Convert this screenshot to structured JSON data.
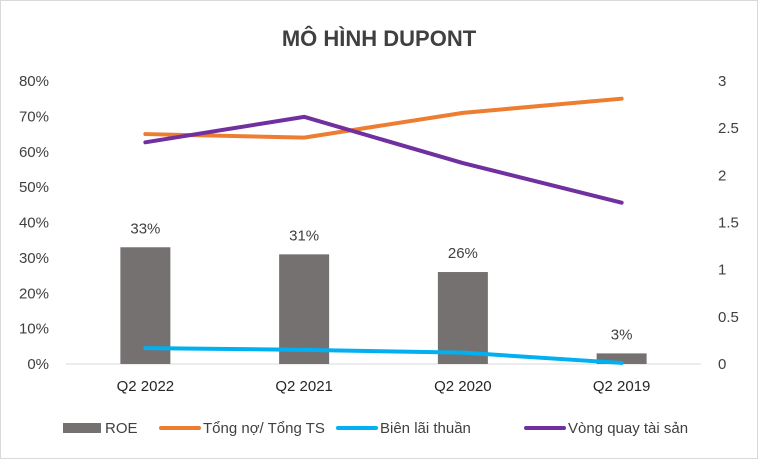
{
  "chart_data": {
    "type": "bar",
    "title": "MÔ HÌNH DUPONT",
    "categories": [
      "Q2 2022",
      "Q2 2021",
      "Q2 2020",
      "Q2 2019"
    ],
    "y_left": {
      "ylim": [
        0,
        80
      ],
      "tick_values": [
        0,
        10,
        20,
        30,
        40,
        50,
        60,
        70,
        80
      ],
      "tick_labels": [
        "0%",
        "10%",
        "20%",
        "30%",
        "40%",
        "50%",
        "60%",
        "70%",
        "80%"
      ]
    },
    "y_right": {
      "ylim": [
        0,
        3
      ],
      "tick_values": [
        0,
        0.5,
        1,
        1.5,
        2,
        2.5,
        3
      ],
      "tick_labels": [
        "0",
        "0.5",
        "1",
        "1.5",
        "2",
        "2.5",
        "3"
      ]
    },
    "legend_position": "bottom",
    "grid": false,
    "series": [
      {
        "name": "ROE",
        "kind": "bar",
        "axis": "left",
        "color": "#767171",
        "values": [
          33,
          31,
          26,
          3
        ],
        "labels": [
          "33%",
          "31%",
          "26%",
          "3%"
        ]
      },
      {
        "name": "Tổng nợ/ Tổng TS",
        "kind": "line",
        "axis": "left",
        "color": "#ED7D31",
        "values": [
          65,
          64,
          71,
          75
        ]
      },
      {
        "name": "Biên lãi thuần",
        "kind": "line",
        "axis": "left",
        "color": "#00B0F0",
        "values": [
          4.5,
          4,
          3.2,
          0.3
        ]
      },
      {
        "name": "Vòng quay tài sản",
        "kind": "line",
        "axis": "right",
        "color": "#7030A0",
        "values": [
          2.35,
          2.62,
          2.13,
          1.71
        ]
      }
    ]
  }
}
